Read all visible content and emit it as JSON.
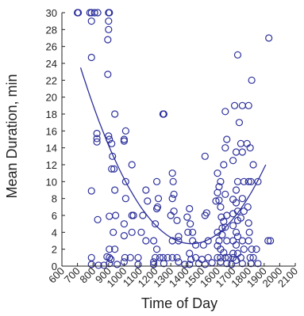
{
  "chart_data": {
    "type": "scatter",
    "xlabel": "Time of Day",
    "ylabel": "Mean Duration, min",
    "xlim": [
      600,
      2100
    ],
    "ylim": [
      0,
      30
    ],
    "xticks": [
      600,
      700,
      800,
      900,
      1000,
      1100,
      1200,
      1300,
      1400,
      1500,
      1600,
      1700,
      1800,
      1900,
      2000,
      2100
    ],
    "yticks": [
      0,
      2,
      4,
      6,
      8,
      10,
      12,
      14,
      16,
      18,
      20,
      22,
      24,
      26,
      28,
      30
    ],
    "grid": false,
    "legend": "none",
    "color": "#2b2f9a",
    "series": [
      {
        "points": [
          [
            700,
            30
          ],
          [
            705,
            30
          ],
          [
            780,
            30
          ],
          [
            790,
            30
          ],
          [
            810,
            30
          ],
          [
            830,
            30
          ],
          [
            900,
            30
          ],
          [
            905,
            30
          ],
          [
            790,
            29
          ],
          [
            900,
            29
          ],
          [
            900,
            28
          ],
          [
            895,
            26.8
          ],
          [
            790,
            24.7
          ],
          [
            895,
            22.7
          ],
          [
            940,
            18
          ],
          [
            825,
            15.7
          ],
          [
            825,
            15.1
          ],
          [
            825,
            14.7
          ],
          [
            900,
            15.4
          ],
          [
            905,
            15
          ],
          [
            920,
            14.5
          ],
          [
            925,
            13
          ],
          [
            920,
            11.5
          ],
          [
            935,
            11.5
          ],
          [
            790,
            8.9
          ],
          [
            940,
            9
          ],
          [
            830,
            5.5
          ],
          [
            905,
            5.9
          ],
          [
            945,
            6
          ],
          [
            930,
            4
          ],
          [
            905,
            2
          ],
          [
            940,
            2
          ],
          [
            890,
            1.1
          ],
          [
            905,
            1
          ],
          [
            915,
            0.8
          ],
          [
            790,
            1
          ],
          [
            790,
            0.2
          ],
          [
            835,
            0.1
          ],
          [
            870,
            0.1
          ],
          [
            905,
            0.3
          ],
          [
            955,
            0.2
          ],
          [
            1000,
            0.5
          ],
          [
            1010,
            16
          ],
          [
            1000,
            15
          ],
          [
            1000,
            14.8
          ],
          [
            1050,
            12
          ],
          [
            1010,
            10
          ],
          [
            1010,
            8
          ],
          [
            1050,
            6
          ],
          [
            1060,
            6
          ],
          [
            1000,
            5
          ],
          [
            1000,
            3.6
          ],
          [
            1050,
            4
          ],
          [
            1040,
            1
          ],
          [
            1005,
            1
          ],
          [
            1090,
            1
          ],
          [
            1090,
            0.2
          ],
          [
            1140,
            9
          ],
          [
            1150,
            7.7
          ],
          [
            1120,
            6
          ],
          [
            1110,
            4
          ],
          [
            1140,
            3
          ],
          [
            1190,
            3
          ],
          [
            1210,
            10
          ],
          [
            1215,
            7
          ],
          [
            1210,
            6.8
          ],
          [
            1200,
            5
          ],
          [
            1220,
            8
          ],
          [
            1250,
            18
          ],
          [
            1255,
            18
          ],
          [
            1210,
            2
          ],
          [
            1200,
            1
          ],
          [
            1230,
            1
          ],
          [
            1250,
            1
          ],
          [
            1190,
            0.5
          ],
          [
            1190,
            0.2
          ],
          [
            1255,
            0.3
          ],
          [
            1310,
            11
          ],
          [
            1315,
            10
          ],
          [
            1320,
            8.5
          ],
          [
            1310,
            8
          ],
          [
            1320,
            6.5
          ],
          [
            1300,
            6
          ],
          [
            1340,
            5.4
          ],
          [
            1350,
            3.5
          ],
          [
            1350,
            3
          ],
          [
            1310,
            3
          ],
          [
            1310,
            1
          ],
          [
            1340,
            1
          ],
          [
            1350,
            0.5
          ],
          [
            1280,
            1
          ],
          [
            1420,
            6.8
          ],
          [
            1405,
            5.8
          ],
          [
            1425,
            5
          ],
          [
            1410,
            4
          ],
          [
            1440,
            4
          ],
          [
            1440,
            3
          ],
          [
            1460,
            2.5
          ],
          [
            1420,
            1.5
          ],
          [
            1430,
            0.8
          ],
          [
            1460,
            1
          ],
          [
            1480,
            0.3
          ],
          [
            1420,
            0.2
          ],
          [
            1390,
            0.2
          ],
          [
            1520,
            13
          ],
          [
            1530,
            6.3
          ],
          [
            1520,
            6
          ],
          [
            1540,
            3
          ],
          [
            1510,
            2.5
          ],
          [
            1540,
            1
          ],
          [
            1500,
            0.8
          ],
          [
            1520,
            0.2
          ],
          [
            1565,
            0.4
          ],
          [
            1600,
            11
          ],
          [
            1610,
            9.4
          ],
          [
            1620,
            10
          ],
          [
            1600,
            8.7
          ],
          [
            1610,
            7.8
          ],
          [
            1620,
            7
          ],
          [
            1590,
            7.7
          ],
          [
            1625,
            5.8
          ],
          [
            1630,
            4.5
          ],
          [
            1600,
            4
          ],
          [
            1630,
            3.7
          ],
          [
            1610,
            3
          ],
          [
            1650,
            18.3
          ],
          [
            1660,
            15
          ],
          [
            1650,
            14
          ],
          [
            1640,
            12
          ],
          [
            1650,
            8.5
          ],
          [
            1660,
            6
          ],
          [
            1640,
            5.3
          ],
          [
            1650,
            4.6
          ],
          [
            1660,
            3
          ],
          [
            1600,
            2.4
          ],
          [
            1620,
            2
          ],
          [
            1640,
            1.6
          ],
          [
            1600,
            1
          ],
          [
            1620,
            1
          ],
          [
            1650,
            1
          ],
          [
            1670,
            1
          ],
          [
            1620,
            0.5
          ],
          [
            1660,
            0.3
          ],
          [
            1690,
            0.2
          ],
          [
            1730,
            25
          ],
          [
            1740,
            17
          ],
          [
            1710,
            19
          ],
          [
            1720,
            13.5
          ],
          [
            1700,
            12.5
          ],
          [
            1730,
            10
          ],
          [
            1720,
            9
          ],
          [
            1700,
            7.9
          ],
          [
            1720,
            7.5
          ],
          [
            1700,
            6.2
          ],
          [
            1730,
            6.5
          ],
          [
            1730,
            5.4
          ],
          [
            1700,
            4.8
          ],
          [
            1720,
            4
          ],
          [
            1730,
            3.5
          ],
          [
            1700,
            3
          ],
          [
            1720,
            2.5
          ],
          [
            1700,
            1.5
          ],
          [
            1730,
            1.5
          ],
          [
            1700,
            1
          ],
          [
            1720,
            0.7
          ],
          [
            1760,
            19
          ],
          [
            1750,
            14.5
          ],
          [
            1760,
            13.5
          ],
          [
            1770,
            10
          ],
          [
            1760,
            8
          ],
          [
            1770,
            6.5
          ],
          [
            1750,
            5.7
          ],
          [
            1760,
            3
          ],
          [
            1770,
            2
          ],
          [
            1750,
            1
          ],
          [
            1760,
            0.3
          ],
          [
            1800,
            19
          ],
          [
            1790,
            14.5
          ],
          [
            1810,
            14
          ],
          [
            1800,
            10
          ],
          [
            1815,
            10
          ],
          [
            1795,
            7
          ],
          [
            1800,
            5.1
          ],
          [
            1805,
            4
          ],
          [
            1800,
            3
          ],
          [
            1820,
            2
          ],
          [
            1810,
            1
          ],
          [
            1815,
            0.3
          ],
          [
            1820,
            22
          ],
          [
            1830,
            12
          ],
          [
            1860,
            10
          ],
          [
            1850,
            2
          ],
          [
            1830,
            1
          ],
          [
            1860,
            0.3
          ],
          [
            1930,
            27
          ],
          [
            1925,
            3
          ],
          [
            1940,
            3
          ]
        ]
      }
    ],
    "trendline": {
      "type": "quadratic",
      "x_range": [
        720,
        1910
      ],
      "points": [
        [
          720,
          23.5
        ],
        [
          1400,
          2.7
        ],
        [
          1910,
          12
        ]
      ]
    }
  }
}
